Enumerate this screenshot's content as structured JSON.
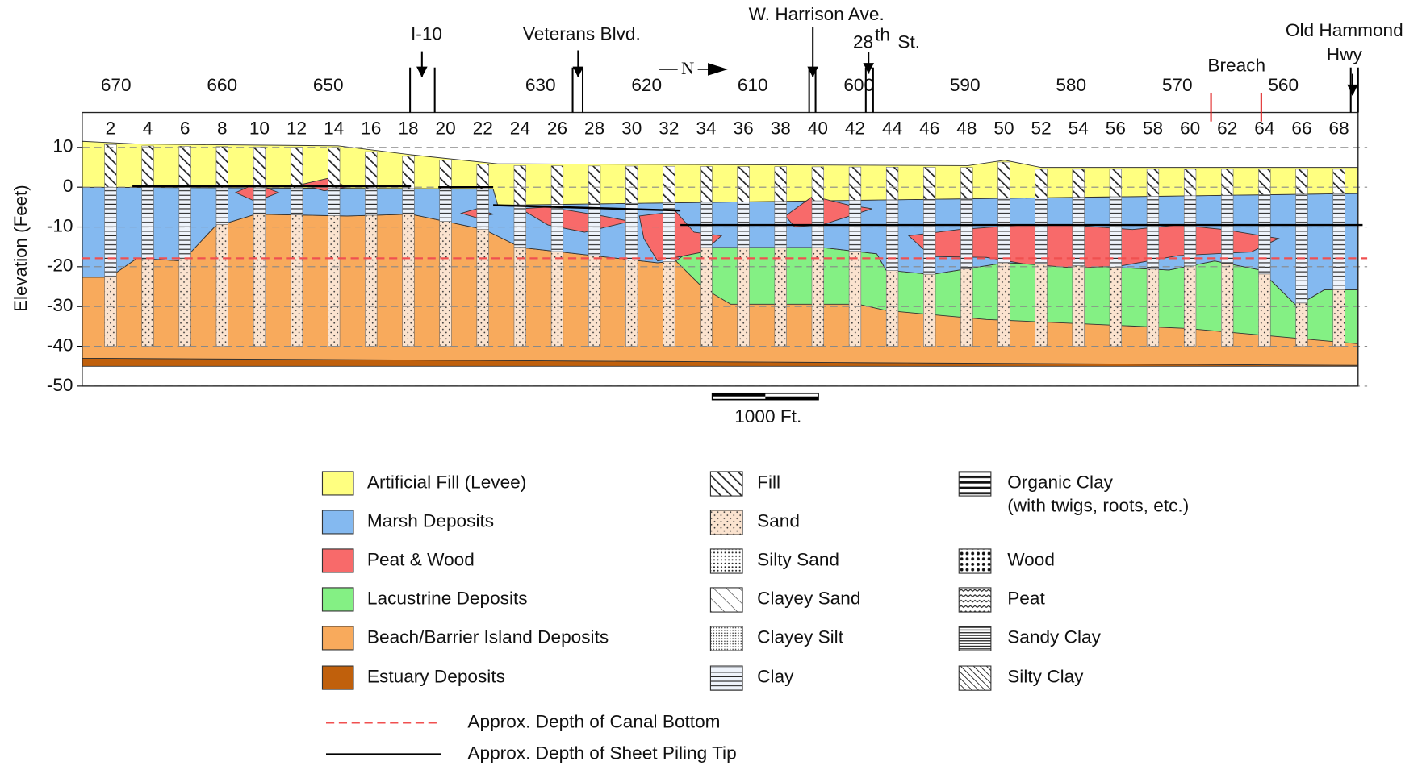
{
  "y_axis": {
    "title": "Elevation (Feet)",
    "ticks": [
      10,
      0,
      -10,
      -20,
      -30,
      -40,
      -50
    ]
  },
  "stations": [
    670,
    660,
    650,
    630,
    620,
    610,
    600,
    590,
    580,
    570,
    560
  ],
  "borings": [
    2,
    4,
    6,
    8,
    10,
    12,
    14,
    16,
    18,
    20,
    22,
    24,
    26,
    28,
    30,
    32,
    34,
    36,
    38,
    40,
    42,
    44,
    46,
    48,
    50,
    52,
    54,
    56,
    58,
    60,
    62,
    64,
    66,
    68
  ],
  "streets": {
    "i10": "I-10",
    "veterans": "Veterans Blvd.",
    "harrison": "W. Harrison Ave.",
    "st28": {
      "number": "28",
      "suffix": "th",
      "rest": "St."
    },
    "old_hammond": [
      "Old Hammond",
      "Hwy"
    ]
  },
  "breach": "Breach",
  "north": "N",
  "scale_bar": "1000 Ft.",
  "legend": {
    "units": [
      {
        "label": "Artificial Fill (Levee)",
        "color": "#ffff80"
      },
      {
        "label": "Marsh Deposits",
        "color": "#84b9f0"
      },
      {
        "label": "Peat & Wood",
        "color": "#f86a6a"
      },
      {
        "label": "Lacustrine Deposits",
        "color": "#84f084"
      },
      {
        "label": "Beach/Barrier Island Deposits",
        "color": "#f8aa5c"
      },
      {
        "label": "Estuary Deposits",
        "color": "#c0600c"
      }
    ],
    "patterns_a": [
      "Fill",
      "Sand",
      "Silty Sand",
      "Clayey Sand",
      "Clayey Silt",
      "Clay"
    ],
    "organic_clay": {
      "label": "Organic Clay",
      "note": "(with twigs, roots, etc.)"
    },
    "patterns_b": [
      "Wood",
      "Peat",
      "Sandy Clay",
      "Silty Clay"
    ],
    "lines": [
      {
        "label": "Approx. Depth of Canal Bottom",
        "color": "#f05050"
      },
      {
        "label": "Approx. Depth of Sheet Piling Tip",
        "color": "#000000"
      }
    ]
  }
}
